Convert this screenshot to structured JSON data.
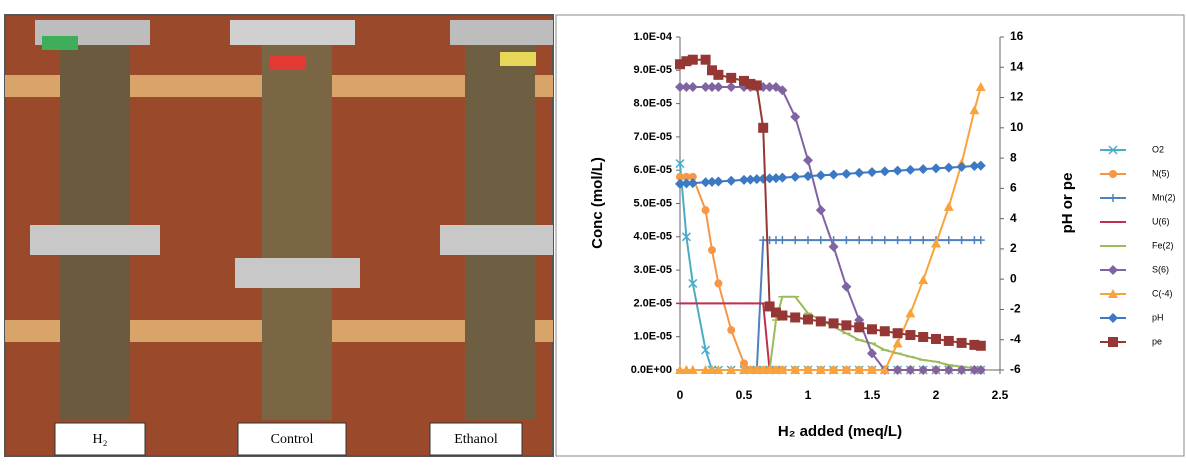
{
  "photo": {
    "labels": [
      "H₂",
      "Control",
      "Ethanol"
    ]
  },
  "chart_data": {
    "type": "line",
    "x_label": "H₂ added (meq/L)",
    "y_label": "Conc (mol/L)",
    "y2_label": "pH or pe",
    "xlim": [
      0,
      2.5
    ],
    "xticks": [
      0,
      0.5,
      1,
      1.5,
      2,
      2.5
    ],
    "ylim": [
      0,
      0.0001
    ],
    "yticks": [
      {
        "value": 0,
        "label": "0.0E+00"
      },
      {
        "value": 1e-05,
        "label": "1.0E-05"
      },
      {
        "value": 2e-05,
        "label": "2.0E-05"
      },
      {
        "value": 3e-05,
        "label": "3.0E-05"
      },
      {
        "value": 4e-05,
        "label": "4.0E-05"
      },
      {
        "value": 5e-05,
        "label": "5.0E-05"
      },
      {
        "value": 6e-05,
        "label": "6.0E-05"
      },
      {
        "value": 7e-05,
        "label": "7.0E-05"
      },
      {
        "value": 8e-05,
        "label": "8.0E-05"
      },
      {
        "value": 9e-05,
        "label": "9.0E-05"
      },
      {
        "value": 0.0001,
        "label": "1.0E-04"
      }
    ],
    "y2lim": [
      -6,
      16
    ],
    "y2ticks": [
      -6,
      -4,
      -2,
      0,
      2,
      4,
      6,
      8,
      10,
      12,
      14,
      16
    ],
    "legend": "right",
    "x": [
      0,
      0.05,
      0.1,
      0.2,
      0.25,
      0.3,
      0.4,
      0.5,
      0.55,
      0.6,
      0.65,
      0.7,
      0.75,
      0.8,
      0.9,
      1.0,
      1.1,
      1.2,
      1.3,
      1.4,
      1.5,
      1.6,
      1.7,
      1.8,
      1.9,
      2.0,
      2.1,
      2.2,
      2.3,
      2.35
    ],
    "series": [
      {
        "name": "O2",
        "color": "#4bacc6",
        "marker": "cross",
        "values": [
          6.2e-05,
          4e-05,
          2.6e-05,
          6e-06,
          0,
          0,
          0,
          0,
          0,
          0,
          0,
          0,
          0,
          0,
          0,
          0,
          0,
          0,
          0,
          0,
          0,
          0,
          0,
          0,
          0,
          0,
          0,
          0,
          0,
          0
        ]
      },
      {
        "name": "N(5)",
        "color": "#f79646",
        "marker": "circle",
        "values": [
          5.8e-05,
          5.8e-05,
          5.8e-05,
          4.8e-05,
          3.6e-05,
          2.6e-05,
          1.2e-05,
          2e-06,
          0,
          0,
          0,
          0,
          0,
          0,
          0,
          0,
          0,
          0,
          0,
          0,
          0,
          0,
          0,
          0,
          0,
          0,
          0,
          0,
          0,
          0
        ]
      },
      {
        "name": "Mn(2)",
        "color": "#4f81bd",
        "marker": "plus",
        "values": [
          0,
          0,
          0,
          0,
          0,
          0,
          0,
          0,
          0,
          0,
          3.9e-05,
          3.9e-05,
          3.9e-05,
          3.9e-05,
          3.9e-05,
          3.9e-05,
          3.9e-05,
          3.9e-05,
          3.9e-05,
          3.9e-05,
          3.9e-05,
          3.9e-05,
          3.9e-05,
          3.9e-05,
          3.9e-05,
          3.9e-05,
          3.9e-05,
          3.9e-05,
          3.9e-05,
          3.9e-05
        ]
      },
      {
        "name": "U(6)",
        "color": "#c0304d",
        "marker": "dash",
        "values": [
          2e-05,
          2e-05,
          2e-05,
          2e-05,
          2e-05,
          2e-05,
          2e-05,
          2e-05,
          2e-05,
          2e-05,
          2e-05,
          0,
          0,
          0,
          0,
          0,
          0,
          0,
          0,
          0,
          0,
          0,
          0,
          0,
          0,
          0,
          0,
          0,
          0,
          0
        ]
      },
      {
        "name": "Fe(2)",
        "color": "#9bbb59",
        "marker": "dash",
        "values": [
          0,
          0,
          0,
          0,
          0,
          0,
          0,
          0,
          0,
          0,
          0,
          0,
          1.5e-05,
          2.2e-05,
          2.2e-05,
          1.7e-05,
          1.5e-05,
          1.3e-05,
          1.1e-05,
          9e-06,
          8e-06,
          6e-06,
          5e-06,
          4e-06,
          3e-06,
          2.5e-06,
          1.5e-06,
          1e-06,
          5e-07,
          0
        ]
      },
      {
        "name": "S(6)",
        "color": "#8064a2",
        "marker": "diamond",
        "values": [
          8.5e-05,
          8.5e-05,
          8.5e-05,
          8.5e-05,
          8.5e-05,
          8.5e-05,
          8.5e-05,
          8.5e-05,
          8.5e-05,
          8.5e-05,
          8.5e-05,
          8.5e-05,
          8.5e-05,
          8.4e-05,
          7.6e-05,
          6.3e-05,
          4.8e-05,
          3.7e-05,
          2.5e-05,
          1.5e-05,
          5e-06,
          0,
          0,
          0,
          0,
          0,
          0,
          0,
          0,
          0
        ]
      },
      {
        "name": "C(-4)",
        "color": "#f9a33a",
        "marker": "triangle",
        "values": [
          0,
          0,
          0,
          0,
          0,
          0,
          0,
          0,
          0,
          0,
          0,
          0,
          0,
          0,
          0,
          0,
          0,
          0,
          0,
          0,
          0,
          0,
          8e-06,
          1.7e-05,
          2.7e-05,
          3.8e-05,
          4.9e-05,
          6.2e-05,
          7.8e-05,
          8.5e-05
        ]
      },
      {
        "name": "pH",
        "color": "#3c78c3",
        "marker": "diamond",
        "axis": "y2",
        "values": [
          6.3,
          6.33,
          6.35,
          6.4,
          6.43,
          6.45,
          6.5,
          6.56,
          6.58,
          6.61,
          6.63,
          6.66,
          6.68,
          6.71,
          6.76,
          6.81,
          6.86,
          6.91,
          6.96,
          7.02,
          7.07,
          7.12,
          7.17,
          7.22,
          7.27,
          7.32,
          7.37,
          7.42,
          7.48,
          7.5
        ]
      },
      {
        "name": "pe",
        "color": "#953735",
        "marker": "square",
        "axis": "y2",
        "values": [
          14.2,
          14.4,
          14.5,
          14.5,
          13.8,
          13.5,
          13.3,
          13.1,
          12.9,
          12.8,
          10.0,
          -1.8,
          -2.2,
          -2.4,
          -2.53,
          -2.66,
          -2.79,
          -2.92,
          -3.05,
          -3.18,
          -3.31,
          -3.44,
          -3.57,
          -3.69,
          -3.82,
          -3.95,
          -4.08,
          -4.21,
          -4.34,
          -4.4
        ]
      }
    ]
  }
}
